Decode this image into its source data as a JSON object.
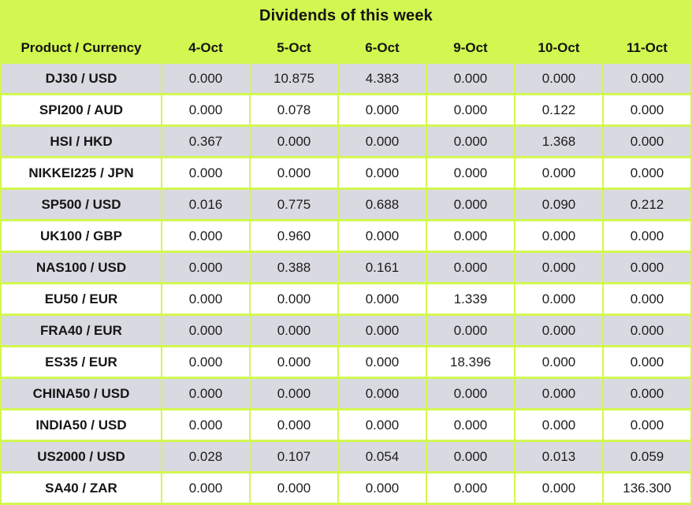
{
  "title": "Dividends of this week",
  "table": {
    "columns": [
      "Product / Currency",
      "4-Oct",
      "5-Oct",
      "6-Oct",
      "9-Oct",
      "10-Oct",
      "11-Oct"
    ],
    "rows": [
      {
        "product": "DJ30 / USD",
        "values": [
          "0.000",
          "10.875",
          "4.383",
          "0.000",
          "0.000",
          "0.000"
        ]
      },
      {
        "product": "SPI200 / AUD",
        "values": [
          "0.000",
          "0.078",
          "0.000",
          "0.000",
          "0.122",
          "0.000"
        ]
      },
      {
        "product": "HSI / HKD",
        "values": [
          "0.367",
          "0.000",
          "0.000",
          "0.000",
          "1.368",
          "0.000"
        ]
      },
      {
        "product": "NIKKEI225 / JPN",
        "values": [
          "0.000",
          "0.000",
          "0.000",
          "0.000",
          "0.000",
          "0.000"
        ]
      },
      {
        "product": "SP500 / USD",
        "values": [
          "0.016",
          "0.775",
          "0.688",
          "0.000",
          "0.090",
          "0.212"
        ]
      },
      {
        "product": "UK100 / GBP",
        "values": [
          "0.000",
          "0.960",
          "0.000",
          "0.000",
          "0.000",
          "0.000"
        ]
      },
      {
        "product": "NAS100 / USD",
        "values": [
          "0.000",
          "0.388",
          "0.161",
          "0.000",
          "0.000",
          "0.000"
        ]
      },
      {
        "product": "EU50 / EUR",
        "values": [
          "0.000",
          "0.000",
          "0.000",
          "1.339",
          "0.000",
          "0.000"
        ]
      },
      {
        "product": "FRA40 / EUR",
        "values": [
          "0.000",
          "0.000",
          "0.000",
          "0.000",
          "0.000",
          "0.000"
        ]
      },
      {
        "product": "ES35 / EUR",
        "values": [
          "0.000",
          "0.000",
          "0.000",
          "18.396",
          "0.000",
          "0.000"
        ]
      },
      {
        "product": "CHINA50 / USD",
        "values": [
          "0.000",
          "0.000",
          "0.000",
          "0.000",
          "0.000",
          "0.000"
        ]
      },
      {
        "product": "INDIA50 / USD",
        "values": [
          "0.000",
          "0.000",
          "0.000",
          "0.000",
          "0.000",
          "0.000"
        ]
      },
      {
        "product": "US2000 / USD",
        "values": [
          "0.028",
          "0.107",
          "0.054",
          "0.000",
          "0.013",
          "0.059"
        ]
      },
      {
        "product": "SA40 / ZAR",
        "values": [
          "0.000",
          "0.000",
          "0.000",
          "0.000",
          "0.000",
          "136.300"
        ]
      }
    ]
  },
  "colors": {
    "background_green": "#D2F750",
    "row_gray": "#D9D9E1",
    "row_white": "#FFFFFF",
    "text": "#141414"
  },
  "chart_data": {
    "type": "table",
    "title": "Dividends of this week",
    "columns": [
      "Product / Currency",
      "4-Oct",
      "5-Oct",
      "6-Oct",
      "9-Oct",
      "10-Oct",
      "11-Oct"
    ],
    "rows": [
      [
        "DJ30 / USD",
        0.0,
        10.875,
        4.383,
        0.0,
        0.0,
        0.0
      ],
      [
        "SPI200 / AUD",
        0.0,
        0.078,
        0.0,
        0.0,
        0.122,
        0.0
      ],
      [
        "HSI / HKD",
        0.367,
        0.0,
        0.0,
        0.0,
        1.368,
        0.0
      ],
      [
        "NIKKEI225 / JPN",
        0.0,
        0.0,
        0.0,
        0.0,
        0.0,
        0.0
      ],
      [
        "SP500 / USD",
        0.016,
        0.775,
        0.688,
        0.0,
        0.09,
        0.212
      ],
      [
        "UK100 / GBP",
        0.0,
        0.96,
        0.0,
        0.0,
        0.0,
        0.0
      ],
      [
        "NAS100 / USD",
        0.0,
        0.388,
        0.161,
        0.0,
        0.0,
        0.0
      ],
      [
        "EU50 / EUR",
        0.0,
        0.0,
        0.0,
        1.339,
        0.0,
        0.0
      ],
      [
        "FRA40 / EUR",
        0.0,
        0.0,
        0.0,
        0.0,
        0.0,
        0.0
      ],
      [
        "ES35 / EUR",
        0.0,
        0.0,
        0.0,
        18.396,
        0.0,
        0.0
      ],
      [
        "CHINA50 / USD",
        0.0,
        0.0,
        0.0,
        0.0,
        0.0,
        0.0
      ],
      [
        "INDIA50 / USD",
        0.0,
        0.0,
        0.0,
        0.0,
        0.0,
        0.0
      ],
      [
        "US2000 / USD",
        0.028,
        0.107,
        0.054,
        0.0,
        0.013,
        0.059
      ],
      [
        "SA40 / ZAR",
        0.0,
        0.0,
        0.0,
        0.0,
        0.0,
        136.3
      ]
    ],
    "layout": {
      "striped_rows": true,
      "first_row_shade": "gray",
      "grid_color_between_cells": "#D2F750"
    }
  }
}
